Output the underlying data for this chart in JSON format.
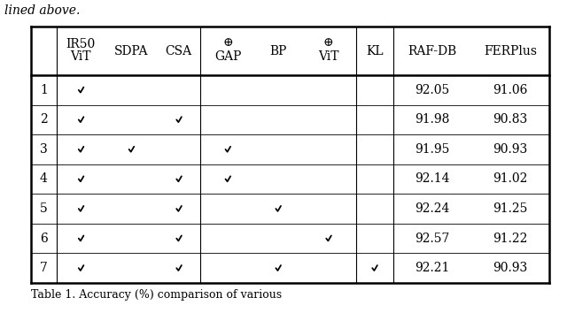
{
  "rows": [
    {
      "id": "1",
      "IR50_ViT": true,
      "SDPA": false,
      "CSA": false,
      "GAP": false,
      "BP": false,
      "ViT2": false,
      "KL": false,
      "RAF_DB": "92.05",
      "FERPlus": "91.06"
    },
    {
      "id": "2",
      "IR50_ViT": true,
      "SDPA": false,
      "CSA": true,
      "GAP": false,
      "BP": false,
      "ViT2": false,
      "KL": false,
      "RAF_DB": "91.98",
      "FERPlus": "90.83"
    },
    {
      "id": "3",
      "IR50_ViT": true,
      "SDPA": true,
      "CSA": false,
      "GAP": true,
      "BP": false,
      "ViT2": false,
      "KL": false,
      "RAF_DB": "91.95",
      "FERPlus": "90.93"
    },
    {
      "id": "4",
      "IR50_ViT": true,
      "SDPA": false,
      "CSA": true,
      "GAP": true,
      "BP": false,
      "ViT2": false,
      "KL": false,
      "RAF_DB": "92.14",
      "FERPlus": "91.02"
    },
    {
      "id": "5",
      "IR50_ViT": true,
      "SDPA": false,
      "CSA": true,
      "GAP": false,
      "BP": true,
      "ViT2": false,
      "KL": false,
      "RAF_DB": "92.24",
      "FERPlus": "91.25"
    },
    {
      "id": "6",
      "IR50_ViT": true,
      "SDPA": false,
      "CSA": true,
      "GAP": false,
      "BP": false,
      "ViT2": true,
      "KL": false,
      "RAF_DB": "92.57",
      "FERPlus": "91.22"
    },
    {
      "id": "7",
      "IR50_ViT": true,
      "SDPA": false,
      "CSA": true,
      "GAP": false,
      "BP": true,
      "ViT2": false,
      "KL": true,
      "RAF_DB": "92.21",
      "FERPlus": "90.93"
    }
  ],
  "background_color": "#ffffff",
  "text_color": "#000000",
  "check_color": "#000000",
  "fontsize": 10,
  "header_fontsize": 10,
  "top_text": "lined above.",
  "bottom_text": "Table 1. Accuracy (%) comparison of various ..."
}
